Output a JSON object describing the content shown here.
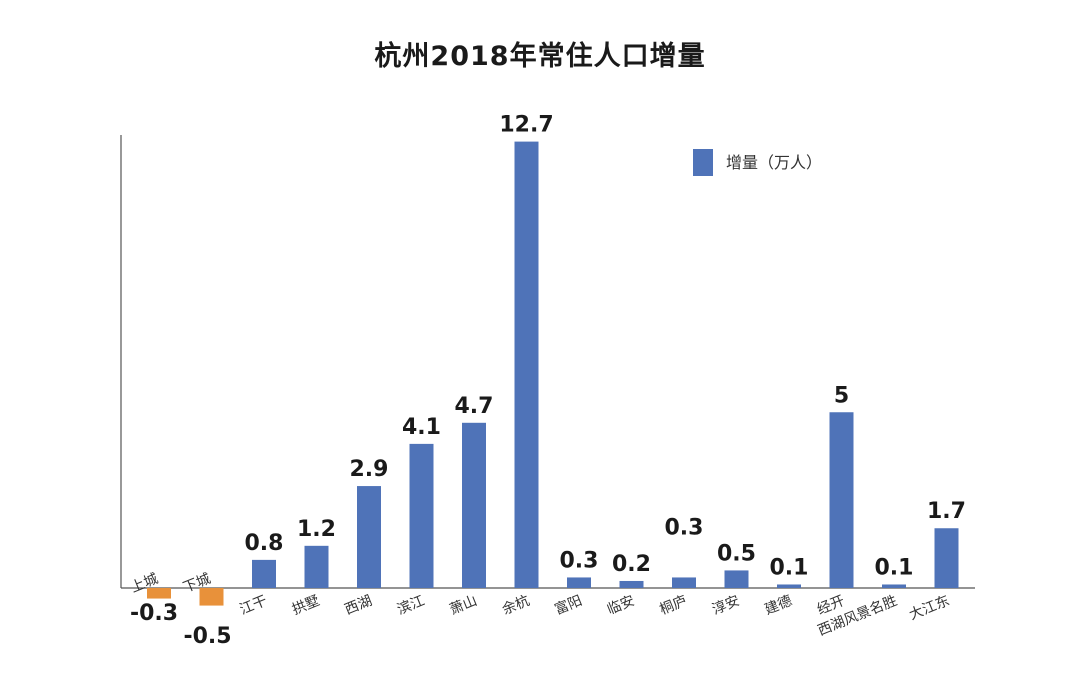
{
  "colors": {
    "positive": "#4f73b8",
    "negative": "#e8913a",
    "axis": "#555555"
  },
  "chart_data": {
    "type": "bar",
    "title": "杭州2018年常住人口增量",
    "legend": {
      "label": "增量（万人）",
      "position": "top-right"
    },
    "categories": [
      "上城",
      "下城",
      "江干",
      "拱墅",
      "西湖",
      "滨江",
      "萧山",
      "余杭",
      "富阳",
      "临安",
      "桐庐",
      "淳安",
      "建德",
      "经开",
      "西湖风景名胜",
      "大江东"
    ],
    "values": [
      -0.3,
      -0.5,
      0.8,
      1.2,
      2.9,
      4.1,
      4.7,
      12.7,
      0.3,
      0.2,
      0.3,
      0.5,
      0.1,
      5,
      0.1,
      1.7
    ],
    "value_labels": [
      "-0.3",
      "-0.5",
      "0.8",
      "1.2",
      "2.9",
      "4.1",
      "4.7",
      "12.7",
      "0.3",
      "0.2",
      "0.3",
      "0.5",
      "0.1",
      "5",
      "0.1",
      "1.7"
    ],
    "xlabel": "",
    "ylabel": "",
    "ylim": [
      -0.6,
      13.3
    ],
    "grid": false
  }
}
